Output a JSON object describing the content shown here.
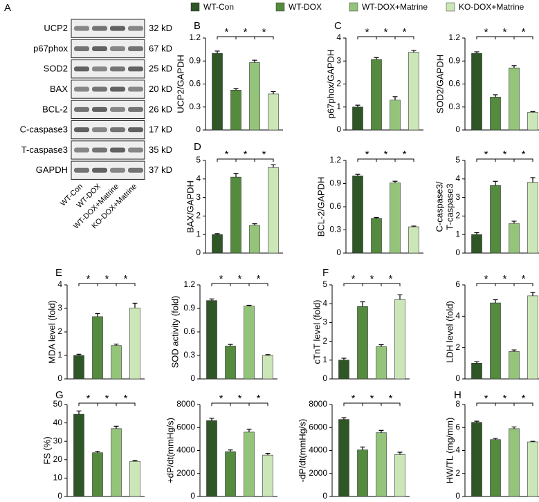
{
  "legend": [
    {
      "name": "WT-Con",
      "color": "#2f5627"
    },
    {
      "name": "WT-DOX",
      "color": "#548b3e"
    },
    {
      "name": "WT-DOX+Matrine",
      "color": "#93c47a"
    },
    {
      "name": "KO-DOX+Matrine",
      "color": "#cbe6b7"
    }
  ],
  "blot": {
    "panel": "A",
    "proteins": [
      "UCP2",
      "p67phox",
      "SOD2",
      "BAX",
      "BCL-2",
      "C-caspase3",
      "T-caspase3",
      "GAPDH"
    ],
    "sizes": [
      "32 kD",
      "67 kD",
      "25 kD",
      "20 kD",
      "26 kD",
      "17 kD",
      "35 kD",
      "37 kD"
    ],
    "lanes": [
      "WT-Con",
      "WT-DOX",
      "WT-DOX+Matrine",
      "KO-DOX+Matrine"
    ]
  },
  "chart_data": [
    {
      "type": "bar",
      "panel": "B",
      "ylabel": "UCP2/GAPDH",
      "values": [
        1.0,
        0.52,
        0.88,
        0.47
      ],
      "errors": [
        0.03,
        0.02,
        0.03,
        0.03
      ],
      "ylim": [
        0,
        1.2
      ],
      "yticks": [
        0,
        0.3,
        0.6,
        0.9,
        1.2
      ],
      "annotations": [
        "*",
        "*",
        "*"
      ]
    },
    {
      "type": "bar",
      "panel": "C",
      "ylabel": "p67phox/GAPDH",
      "values": [
        1.0,
        3.07,
        1.3,
        3.38
      ],
      "errors": [
        0.08,
        0.08,
        0.15,
        0.08
      ],
      "ylim": [
        0,
        4
      ],
      "yticks": [
        0,
        1,
        2,
        3,
        4
      ],
      "annotations": [
        "*",
        "*",
        "*"
      ]
    },
    {
      "type": "bar",
      "ylabel": "SOD2/GAPDH",
      "values": [
        1.0,
        0.43,
        0.81,
        0.23
      ],
      "errors": [
        0.02,
        0.03,
        0.03,
        0.01
      ],
      "ylim": [
        0,
        1.2
      ],
      "yticks": [
        0,
        0.3,
        0.6,
        0.9,
        1.2
      ],
      "annotations": [
        "*",
        "*",
        "*"
      ]
    },
    {
      "type": "bar",
      "panel": "D",
      "ylabel": "BAX/GAPDH",
      "values": [
        1.0,
        4.1,
        1.5,
        4.62
      ],
      "errors": [
        0.05,
        0.2,
        0.08,
        0.15
      ],
      "ylim": [
        0,
        5
      ],
      "yticks": [
        0,
        1,
        2,
        3,
        4,
        5
      ],
      "annotations": [
        "*",
        "*",
        "*"
      ]
    },
    {
      "type": "bar",
      "ylabel": "BCL-2/GAPDH",
      "values": [
        1.0,
        0.45,
        0.91,
        0.34
      ],
      "errors": [
        0.02,
        0.01,
        0.02,
        0.01
      ],
      "ylim": [
        0,
        1.2
      ],
      "yticks": [
        0,
        0.3,
        0.6,
        0.9,
        1.2
      ],
      "annotations": [
        "*",
        "*",
        "*"
      ]
    },
    {
      "type": "bar",
      "ylabel": [
        "C-caspase3/",
        "T-caspase3"
      ],
      "values": [
        1.0,
        3.65,
        1.6,
        3.82
      ],
      "errors": [
        0.1,
        0.22,
        0.12,
        0.25
      ],
      "ylim": [
        0,
        5
      ],
      "yticks": [
        0,
        1,
        2,
        3,
        4,
        5
      ],
      "annotations": [
        "*",
        "*",
        "*"
      ]
    },
    {
      "type": "bar",
      "panel": "E",
      "ylabel": "MDA level (fold)",
      "values": [
        1.0,
        2.65,
        1.42,
        3.02
      ],
      "errors": [
        0.05,
        0.13,
        0.06,
        0.2
      ],
      "ylim": [
        0,
        4
      ],
      "yticks": [
        0,
        1,
        2,
        3,
        4
      ],
      "annotations": [
        "*",
        "*",
        "*"
      ]
    },
    {
      "type": "bar",
      "ylabel": "SOD activity (fold)",
      "values": [
        1.0,
        0.42,
        0.93,
        0.3
      ],
      "errors": [
        0.02,
        0.02,
        0.01,
        0.01
      ],
      "ylim": [
        0,
        1.2
      ],
      "yticks": [
        0,
        0.3,
        0.6,
        0.9,
        1.2
      ],
      "annotations": [
        "*",
        "*",
        "*"
      ]
    },
    {
      "type": "bar",
      "panel": "F",
      "ylabel": "cTnT level (fold)",
      "values": [
        1.0,
        3.85,
        1.72,
        4.22
      ],
      "errors": [
        0.1,
        0.25,
        0.1,
        0.25
      ],
      "ylim": [
        0,
        5
      ],
      "yticks": [
        0,
        1,
        2,
        3,
        4,
        5
      ],
      "annotations": [
        "*",
        "*",
        "*"
      ]
    },
    {
      "type": "bar",
      "ylabel": "LDH level (fold)",
      "values": [
        1.0,
        4.85,
        1.75,
        5.3
      ],
      "errors": [
        0.1,
        0.2,
        0.1,
        0.22
      ],
      "ylim": [
        0,
        6
      ],
      "yticks": [
        0,
        2,
        4,
        6
      ],
      "annotations": [
        "*",
        "*",
        "*"
      ]
    },
    {
      "type": "bar",
      "panel": "G",
      "ylabel": "FS (%)",
      "values": [
        44.7,
        23.8,
        36.9,
        19.1
      ],
      "errors": [
        1.8,
        0.8,
        1.3,
        0.5
      ],
      "ylim": [
        0,
        50
      ],
      "yticks": [
        0,
        10,
        20,
        30,
        40,
        50
      ],
      "annotations": [
        "*",
        "*",
        "*"
      ]
    },
    {
      "type": "bar",
      "ylabel": "+dP/dt(mmHg/s)",
      "values": [
        6600,
        3900,
        5600,
        3600
      ],
      "errors": [
        200,
        150,
        250,
        150
      ],
      "ylim": [
        0,
        8000
      ],
      "yticks": [
        0,
        2000,
        4000,
        6000,
        8000
      ],
      "annotations": [
        "*",
        "*",
        "*"
      ]
    },
    {
      "type": "bar",
      "ylabel": "-dP/dt(mmHg/s)",
      "values": [
        6700,
        4050,
        5550,
        3650
      ],
      "errors": [
        150,
        250,
        200,
        200
      ],
      "ylim": [
        0,
        8000
      ],
      "yticks": [
        0,
        2000,
        4000,
        6000,
        8000
      ],
      "annotations": [
        "*",
        "*",
        "*"
      ]
    },
    {
      "type": "bar",
      "panel": "H",
      "ylabel": "HW/TL (mg/mm)",
      "values": [
        6.45,
        4.95,
        5.9,
        4.75
      ],
      "errors": [
        0.1,
        0.1,
        0.15,
        0.05
      ],
      "ylim": [
        0,
        8
      ],
      "yticks": [
        0,
        2,
        4,
        6,
        8
      ],
      "annotations": [
        "*",
        "*",
        "*"
      ]
    }
  ]
}
